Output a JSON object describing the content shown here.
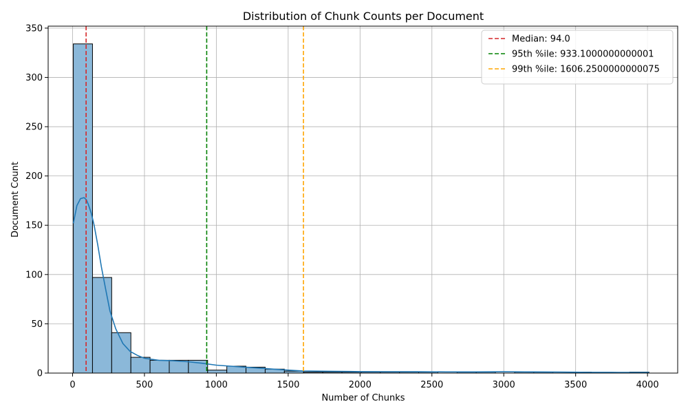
{
  "chart_data": {
    "type": "bar",
    "title": "Distribution of Chunk Counts per Document",
    "xlabel": "Number of Chunks",
    "ylabel": "Document Count",
    "xlim": [
      -170,
      4210
    ],
    "ylim": [
      0,
      352
    ],
    "xticks": [
      0,
      500,
      1000,
      1500,
      2000,
      2500,
      3000,
      3500,
      4000
    ],
    "yticks": [
      0,
      50,
      100,
      150,
      200,
      250,
      300,
      350
    ],
    "grid": true,
    "legend_position": "top-right",
    "histogram": {
      "bin_start": 5,
      "bin_width": 133.5,
      "counts": [
        334,
        97,
        41,
        16,
        13,
        13,
        13,
        3,
        7,
        6,
        4,
        2,
        1,
        1,
        1,
        1,
        1,
        1,
        1,
        0,
        1,
        1,
        0,
        1,
        1,
        0,
        1,
        0,
        0,
        1
      ],
      "bar_color": "#8bb8d9",
      "edge_color": "#000000"
    },
    "kde": {
      "name": "",
      "color": "#1f77b4",
      "x": [
        5,
        30,
        55,
        80,
        95,
        110,
        130,
        150,
        175,
        200,
        230,
        260,
        300,
        350,
        400,
        450,
        500,
        600,
        700,
        800,
        900,
        1000,
        1100,
        1200,
        1300,
        1400,
        1500,
        1600,
        1800,
        2000,
        2200,
        2400,
        2600,
        2800,
        3000,
        3200,
        3400,
        3600,
        3800,
        4010
      ],
      "y": [
        152,
        170,
        177,
        178,
        176,
        171,
        162,
        150,
        130,
        108,
        85,
        63,
        45,
        30,
        22,
        18,
        15,
        13,
        12.5,
        11.5,
        10,
        8,
        7,
        6,
        5,
        4,
        3,
        2.2,
        1.8,
        1.5,
        1.4,
        1.3,
        1.2,
        1.2,
        1.3,
        1.2,
        1.0,
        0.8,
        0.7,
        0.6
      ]
    },
    "reference_lines": [
      {
        "name": "Median: 94.0",
        "value": 94.0,
        "color": "#d62728"
      },
      {
        "name": "95th %ile: 933.1000000000001",
        "value": 933.1000000000001,
        "color": "#008000"
      },
      {
        "name": "99th %ile: 1606.2500000000075",
        "value": 1606.2500000000075,
        "color": "#ffa500"
      }
    ]
  }
}
